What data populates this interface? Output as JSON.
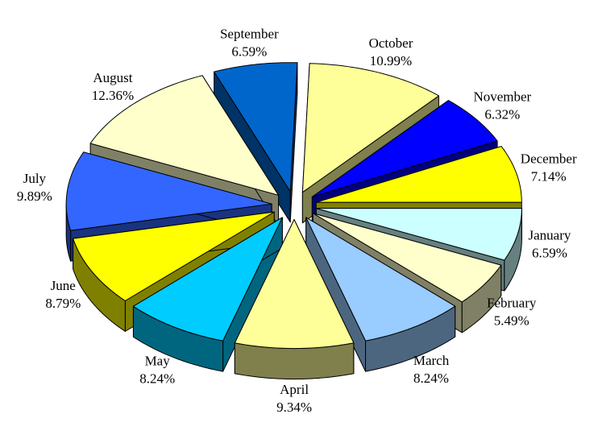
{
  "chart_data": {
    "type": "pie",
    "categories": [
      "January",
      "February",
      "March",
      "April",
      "May",
      "June",
      "July",
      "August",
      "September",
      "October",
      "November",
      "December"
    ],
    "values": [
      6.59,
      5.49,
      8.24,
      9.34,
      8.24,
      8.79,
      9.89,
      12.36,
      6.59,
      10.99,
      6.32,
      7.14
    ],
    "value_labels": [
      "6.59%",
      "5.49%",
      "8.24%",
      "9.34%",
      "8.24%",
      "8.79%",
      "9.89%",
      "12.36%",
      "6.59%",
      "10.99%",
      "6.32%",
      "7.14%"
    ],
    "colors": [
      "#ccffff",
      "#ffffcc",
      "#99ccff",
      "#ffff99",
      "#00ccff",
      "#ffff00",
      "#3366ff",
      "#ffffcc",
      "#0066cc",
      "#ffff99",
      "#0000ff",
      "#ffff00"
    ]
  }
}
